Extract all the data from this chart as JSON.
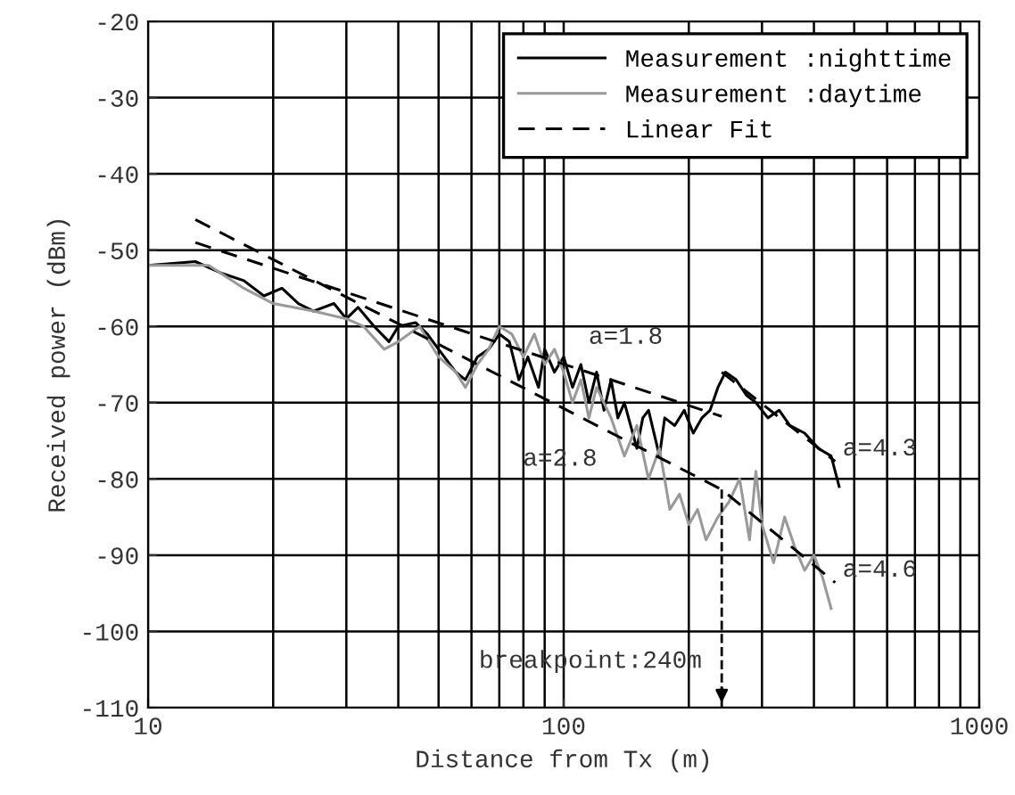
{
  "chart_data": {
    "type": "line",
    "xlabel": "Distance from Tx (m)",
    "ylabel": "Received power (dBm)",
    "log": "x",
    "xlim": [
      10,
      1000
    ],
    "xticks": [
      10,
      100,
      1000
    ],
    "ylim": [
      -110,
      -20
    ],
    "yticks": [
      -110,
      -100,
      -90,
      -80,
      -70,
      -60,
      -50,
      -40,
      -30,
      -20
    ],
    "grid": true,
    "legend": "top right",
    "line_style": "solid",
    "marker": "none",
    "series": [
      {
        "name": "Measurement :nighttime",
        "color": "#000000",
        "x": [
          10,
          13,
          15,
          17,
          19,
          21,
          23,
          25,
          28,
          30,
          32,
          35,
          38,
          40,
          44,
          47,
          50,
          55,
          58,
          62,
          66,
          70,
          74,
          78,
          82,
          87,
          90,
          95,
          100,
          105,
          110,
          115,
          120,
          125,
          130,
          135,
          140,
          150,
          155,
          160,
          170,
          175,
          185,
          195,
          205,
          215,
          225,
          235,
          245,
          260,
          275,
          290,
          310,
          330,
          350,
          380,
          410,
          440,
          460
        ],
        "values": [
          -52,
          -51.5,
          -53,
          -54,
          -56,
          -55,
          -57,
          -58,
          -57,
          -59,
          -57.5,
          -60,
          -62,
          -60,
          -59.5,
          -61,
          -63,
          -66,
          -67,
          -64,
          -63,
          -61,
          -62,
          -67,
          -64,
          -68,
          -63,
          -66,
          -64,
          -68,
          -65,
          -70,
          -66,
          -71,
          -67,
          -72,
          -70,
          -76,
          -72,
          -71,
          -77,
          -72,
          -73,
          -71,
          -74,
          -72,
          -71,
          -68,
          -66,
          -67,
          -69,
          -70,
          -72,
          -71,
          -73,
          -74,
          -76,
          -77,
          -81
        ]
      },
      {
        "name": "Measurement :daytime",
        "color": "#999999",
        "x": [
          10,
          14,
          17,
          20,
          25,
          30,
          33,
          37,
          40,
          45,
          50,
          55,
          58,
          62,
          66,
          70,
          75,
          80,
          85,
          90,
          95,
          100,
          105,
          110,
          115,
          120,
          130,
          140,
          150,
          160,
          170,
          180,
          190,
          200,
          210,
          220,
          235,
          250,
          265,
          280,
          290,
          300,
          320,
          340,
          360,
          380,
          400,
          420,
          440
        ],
        "values": [
          -52,
          -52,
          -55,
          -57,
          -58,
          -59,
          -60,
          -63,
          -62,
          -60,
          -64,
          -66,
          -68,
          -65,
          -63,
          -60,
          -61,
          -64,
          -61,
          -65,
          -63,
          -66,
          -70,
          -67,
          -72,
          -68,
          -72,
          -77,
          -73,
          -80,
          -76,
          -84,
          -82,
          -86,
          -84,
          -88,
          -85,
          -83,
          -80,
          -88,
          -79,
          -86,
          -91,
          -85,
          -89,
          -92,
          -90,
          -93,
          -97
        ]
      },
      {
        "name": "Linear Fit",
        "type": "line",
        "line_style": "dashed",
        "color": "#000000",
        "x": [
          13,
          240
        ],
        "values": [
          -49,
          -71.8
        ]
      },
      {
        "type": "line",
        "line_style": "dashed",
        "color": "#000000",
        "x": [
          240,
          450
        ],
        "values": [
          -66,
          -77.7
        ]
      },
      {
        "type": "line",
        "line_style": "dashed",
        "color": "#000000",
        "x": [
          13,
          240,
          450
        ],
        "values": [
          -46,
          -81.4,
          -93.6
        ]
      }
    ],
    "annotations": [
      {
        "text": "a=1.8",
        "x": 141,
        "y": -67.6
      },
      {
        "text": "a=4.3",
        "x": 450,
        "y": -77.7
      },
      {
        "text": "a=2.8",
        "x": 98,
        "y": -70.6
      },
      {
        "text": "a=4.6",
        "x": 450,
        "y": -93.6
      }
    ],
    "ref_lines": [
      {
        "axis": "x",
        "value": 240,
        "label": "breakpoint:240m",
        "color": "#000000",
        "line_style": "dashed"
      }
    ]
  }
}
